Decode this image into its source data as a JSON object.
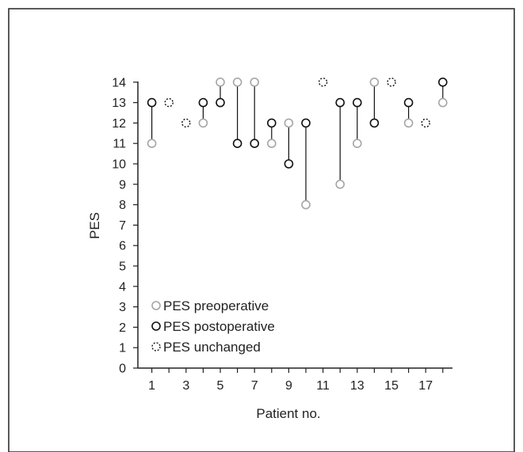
{
  "chart_data": {
    "type": "scatter",
    "title": "",
    "xlabel": "Patient no.",
    "ylabel": "PES",
    "xlim": [
      0,
      18
    ],
    "ylim": [
      0,
      14
    ],
    "x_ticks": [
      1,
      3,
      5,
      7,
      9,
      11,
      13,
      15,
      17
    ],
    "y_ticks": [
      0,
      1,
      2,
      3,
      4,
      5,
      6,
      7,
      8,
      9,
      10,
      11,
      12,
      13,
      14
    ],
    "grid": false,
    "legend_position": "bottom-left",
    "colors": {
      "preoperative": "#a6a6a6",
      "postoperative": "#111111",
      "unchanged": "#111111",
      "axis": "#222222"
    },
    "legend": {
      "preoperative": "PES preoperative",
      "postoperative": "PES postoperative",
      "unchanged": "PES unchanged"
    },
    "patients": [
      1,
      2,
      3,
      4,
      5,
      6,
      7,
      8,
      9,
      10,
      11,
      12,
      13,
      14,
      15,
      16,
      17,
      18
    ],
    "series": [
      {
        "name": "PES preoperative",
        "values": [
          11,
          13,
          12,
          12,
          14,
          14,
          14,
          11,
          12,
          8,
          14,
          9,
          11,
          14,
          14,
          12,
          12,
          13
        ]
      },
      {
        "name": "PES postoperative",
        "values": [
          13,
          13,
          12,
          13,
          13,
          11,
          11,
          12,
          10,
          12,
          14,
          13,
          13,
          12,
          14,
          13,
          12,
          14
        ]
      }
    ],
    "unchanged_patients": [
      2,
      3,
      11,
      15,
      17
    ]
  }
}
